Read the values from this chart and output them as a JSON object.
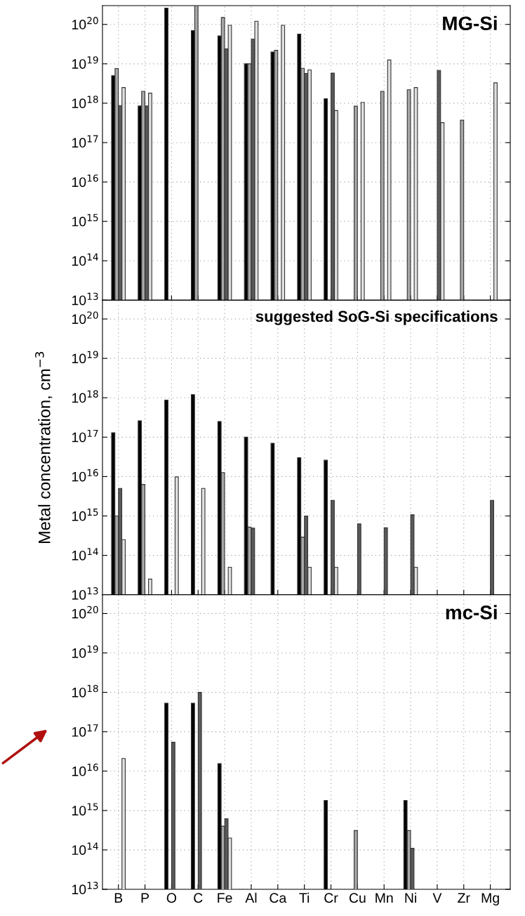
{
  "chart_data": [
    {
      "type": "bar",
      "title": "MG-Si",
      "log": true,
      "grid": true,
      "tick_labels": "y",
      "categories": [
        null,
        null,
        null,
        null,
        null,
        null,
        null,
        null,
        null,
        null,
        null,
        null,
        null,
        null,
        null
      ],
      "ylim": [
        10000000000000.0,
        3e+20
      ],
      "yticks": [
        {
          "value": 10000000000000.0,
          "label": "10$^{13}$"
        },
        {
          "value": 100000000000000.0,
          "label": "10$^{14}$"
        },
        {
          "value": 1000000000000000.0,
          "label": "10$^{15}$"
        },
        {
          "value": 1e+16,
          "label": "10$^{16}$"
        },
        {
          "value": 1e+17,
          "label": "10$^{17}$"
        },
        {
          "value": 1e+18,
          "label": "10$^{18}$"
        },
        {
          "value": 1e+19,
          "label": "10$^{19}$"
        },
        {
          "value": 1e+20,
          "label": "10$^{20}$"
        }
      ],
      "series": [
        {
          "color": "#000000",
          "values": [
            5e+18,
            8.5e+17,
            2.6e+20,
            7e+19,
            5.1e+19,
            1e+19,
            2e+19,
            5.7e+19,
            1.3e+18,
            null,
            null,
            null,
            null,
            null,
            null
          ]
        },
        {
          "color": "#a8a8a8",
          "values": [
            7.6e+18,
            2e+18,
            null,
            3e+20,
            1.5e+20,
            1e+19,
            2.2e+19,
            7.7e+18,
            null,
            8.4e+17,
            2e+18,
            2.2e+18,
            null,
            3.7e+17,
            null
          ]
        },
        {
          "color": "#5a5a5a",
          "values": [
            8.7e+17,
            8.5e+17,
            null,
            null,
            2.4e+19,
            4.2e+19,
            null,
            5.7e+18,
            5.8e+18,
            null,
            null,
            null,
            6.8e+18,
            null,
            null
          ]
        },
        {
          "color": "#e0e0e0",
          "values": [
            2.5e+18,
            1.8e+18,
            null,
            null,
            9.5e+19,
            1.2e+20,
            9.5e+19,
            7e+18,
            6.5e+17,
            1.05e+18,
            1.25e+19,
            2.5e+18,
            3.2e+17,
            null,
            3.3e+18
          ]
        }
      ]
    },
    {
      "type": "bar",
      "title": "suggested SoG-Si specifications",
      "ylabel": "Metal concentration, cm$^{−3}$",
      "log": true,
      "grid": true,
      "tick_labels": "y",
      "categories": [
        null,
        null,
        null,
        null,
        null,
        null,
        null,
        null,
        null,
        null,
        null,
        null,
        null,
        null,
        null
      ],
      "ylim": [
        10000000000000.0,
        3e+20
      ],
      "yticks": [
        {
          "value": 10000000000000.0,
          "label": "10$^{13}$"
        },
        {
          "value": 100000000000000.0,
          "label": "10$^{14}$"
        },
        {
          "value": 1000000000000000.0,
          "label": "10$^{15}$"
        },
        {
          "value": 1e+16,
          "label": "10$^{16}$"
        },
        {
          "value": 1e+17,
          "label": "10$^{17}$"
        },
        {
          "value": 1e+18,
          "label": "10$^{18}$"
        },
        {
          "value": 1e+19,
          "label": "10$^{19}$"
        },
        {
          "value": 1e+20,
          "label": "10$^{20}$"
        }
      ],
      "series": [
        {
          "color": "#000000",
          "values": [
            1.3e+17,
            2.6e+17,
            8.7e+17,
            1.2e+18,
            2.5e+17,
            1e+17,
            7e+16,
            3e+16,
            2.6e+16,
            null,
            null,
            null,
            null,
            null,
            null
          ]
        },
        {
          "color": "#a8a8a8",
          "values": [
            1000000000000000.0,
            6300000000000000.0,
            null,
            null,
            1.26e+16,
            520000000000000.0,
            null,
            290000000000000.0,
            null,
            null,
            null,
            null,
            null,
            null,
            null
          ]
        },
        {
          "color": "#5a5a5a",
          "values": [
            5000000000000000.0,
            null,
            null,
            null,
            null,
            490000000000000.0,
            null,
            1000000000000000.0,
            2500000000000000.0,
            630000000000000.0,
            500000000000000.0,
            1070000000000000.0,
            null,
            null,
            2500000000000000.0
          ]
        },
        {
          "color": "#e0e0e0",
          "values": [
            250000000000000.0,
            25000000000000.0,
            9800000000000000.0,
            5000000000000000.0,
            50000000000000.0,
            null,
            null,
            50000000000000.0,
            50000000000000.0,
            null,
            null,
            50000000000000.0,
            null,
            null,
            null
          ]
        }
      ]
    },
    {
      "type": "bar",
      "title": "mc-Si",
      "log": true,
      "grid": true,
      "categories": [
        "B",
        "P",
        "O",
        "C",
        "Fe",
        "Al",
        "Ca",
        "Ti",
        "Cr",
        "Cu",
        "Mn",
        "Ni",
        "V",
        "Zr",
        "Mg"
      ],
      "ylim": [
        10000000000000.0,
        3e+20
      ],
      "yticks": [
        {
          "value": 10000000000000.0,
          "label": "10$^{13}$"
        },
        {
          "value": 100000000000000.0,
          "label": "10$^{14}$"
        },
        {
          "value": 1000000000000000.0,
          "label": "10$^{15}$"
        },
        {
          "value": 1e+16,
          "label": "10$^{16}$"
        },
        {
          "value": 1e+17,
          "label": "10$^{17}$"
        },
        {
          "value": 1e+18,
          "label": "10$^{18}$"
        },
        {
          "value": 1e+19,
          "label": "10$^{19}$"
        },
        {
          "value": 1e+20,
          "label": "10$^{20}$"
        }
      ],
      "series": [
        {
          "color": "#000000",
          "values": [
            null,
            null,
            5.3e+17,
            5.3e+17,
            1.55e+16,
            null,
            null,
            null,
            1800000000000000.0,
            null,
            null,
            1800000000000000.0,
            null,
            null,
            null
          ]
        },
        {
          "color": "#a8a8a8",
          "values": [
            null,
            null,
            null,
            null,
            400000000000000.0,
            null,
            null,
            null,
            null,
            310000000000000.0,
            null,
            310000000000000.0,
            null,
            null,
            null
          ]
        },
        {
          "color": "#5a5a5a",
          "values": [
            null,
            null,
            5.4e+16,
            1e+18,
            620000000000000.0,
            null,
            null,
            null,
            null,
            null,
            null,
            110000000000000.0,
            null,
            null,
            null
          ]
        },
        {
          "color": "#e0e0e0",
          "values": [
            2.1e+16,
            null,
            null,
            null,
            200000000000000.0,
            null,
            null,
            null,
            null,
            null,
            null,
            null,
            null,
            null,
            null
          ]
        }
      ]
    }
  ]
}
